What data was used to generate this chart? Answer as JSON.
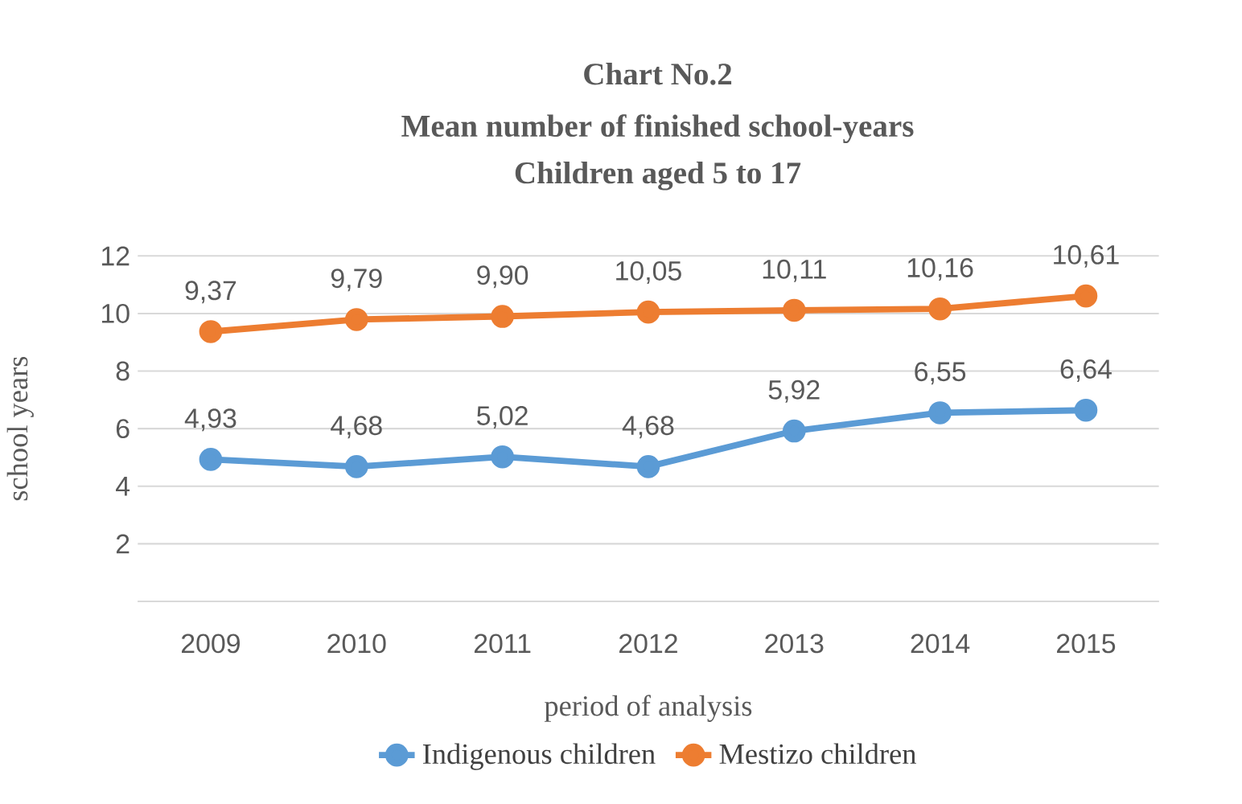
{
  "chart_data": {
    "type": "line",
    "title": "Chart No.2",
    "subtitle": "Mean number  of finished  school-years",
    "annotations": [
      "Children  aged 5 to 17"
    ],
    "xlabel": "period of analysis",
    "ylabel": "school years",
    "categories": [
      "2009",
      "2010",
      "2011",
      "2012",
      "2013",
      "2014",
      "2015"
    ],
    "series": [
      {
        "name": "Indigenous children",
        "color": "#5b9bd5",
        "values": [
          4.93,
          4.68,
          5.02,
          4.68,
          5.92,
          6.55,
          6.64
        ],
        "value_labels": [
          "4,93",
          "4,68",
          "5,02",
          "4,68",
          "5,92",
          "6,55",
          "6,64"
        ]
      },
      {
        "name": "Mestizo children",
        "color": "#ed7d31",
        "values": [
          9.37,
          9.79,
          9.9,
          10.05,
          10.11,
          10.16,
          10.61
        ],
        "value_labels": [
          "9,37",
          "9,79",
          "9,90",
          "10,05",
          "10,11",
          "10,16",
          "10,61"
        ]
      }
    ],
    "ylim": [
      0,
      12
    ],
    "yticks": [
      {
        "value": 0,
        "label": null
      },
      2,
      4,
      6,
      8,
      10,
      12
    ],
    "grid": "y",
    "legend": "bottom",
    "marker": "circle",
    "line_style": "solid"
  }
}
